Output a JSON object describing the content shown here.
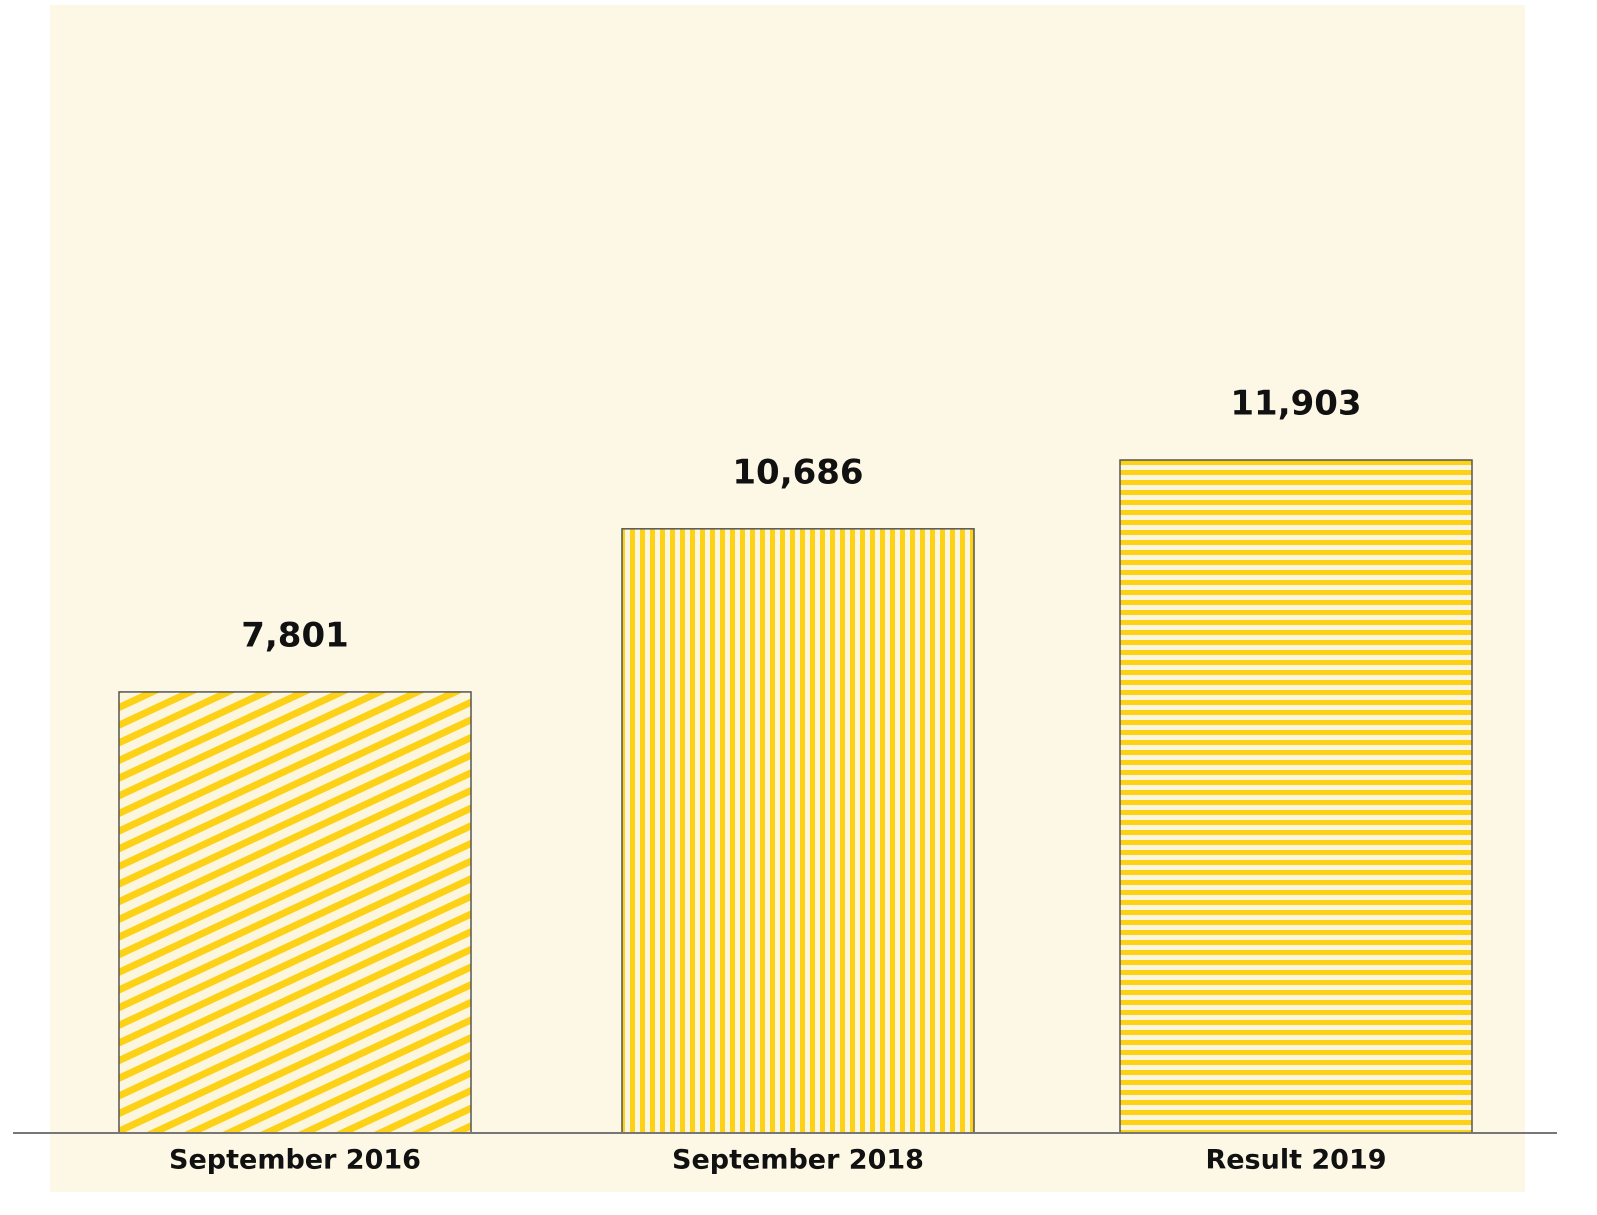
{
  "chart_data": {
    "type": "bar",
    "categories": [
      "September 2016",
      "September 2018",
      "Result 2019"
    ],
    "values": [
      7801,
      10686,
      11903
    ],
    "value_labels": [
      "7,801",
      "10,686",
      "11,903"
    ],
    "color": "#fcd116"
  }
}
